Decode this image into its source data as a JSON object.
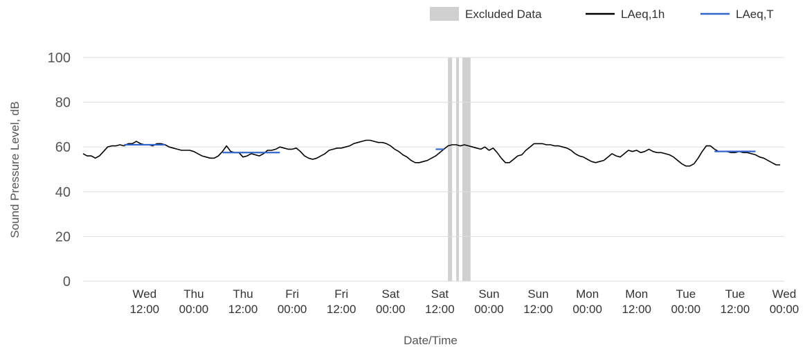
{
  "chart_data": {
    "type": "line",
    "xlabel": "Date/Time",
    "ylabel": "Sound Pressure Level, dB",
    "ylim": [
      0,
      100
    ],
    "y_ticks": [
      0,
      20,
      40,
      60,
      80,
      100
    ],
    "xlim": [
      "Tue 21:00",
      "Wed 00:00 (+8d)"
    ],
    "x_ticks": [
      {
        "day": "Wed",
        "time": "12:00"
      },
      {
        "day": "Thu",
        "time": "00:00"
      },
      {
        "day": "Thu",
        "time": "12:00"
      },
      {
        "day": "Fri",
        "time": "00:00"
      },
      {
        "day": "Fri",
        "time": "12:00"
      },
      {
        "day": "Sat",
        "time": "00:00"
      },
      {
        "day": "Sat",
        "time": "12:00"
      },
      {
        "day": "Sun",
        "time": "00:00"
      },
      {
        "day": "Sun",
        "time": "12:00"
      },
      {
        "day": "Mon",
        "time": "00:00"
      },
      {
        "day": "Mon",
        "time": "12:00"
      },
      {
        "day": "Tue",
        "time": "00:00"
      },
      {
        "day": "Tue",
        "time": "12:00"
      },
      {
        "day": "Wed",
        "time": "00:00"
      }
    ],
    "grid": true,
    "legend_position": "top-right",
    "legend": [
      {
        "label": "Excluded Data",
        "kind": "box",
        "color": "#d0d0d0"
      },
      {
        "label": "LAeq,1h",
        "kind": "line",
        "color": "#000000"
      },
      {
        "label": "LAeq,T",
        "kind": "line",
        "color": "#3366cc"
      }
    ],
    "excluded_ranges": [
      [
        "Sat 14:00",
        "Sat 15:00"
      ],
      [
        "Sat 16:00",
        "Sat 16:40"
      ],
      [
        "Sat 17:30",
        "Sat 19:30"
      ]
    ],
    "series": [
      {
        "name": "LAeq,1h",
        "color": "#000000",
        "points": [
          [
            "Tue 21:00",
            57
          ],
          [
            "Tue 22:00",
            56
          ],
          [
            "Tue 23:00",
            56
          ],
          [
            "Wed 00:00",
            55
          ],
          [
            "Wed 01:00",
            56
          ],
          [
            "Wed 02:00",
            58
          ],
          [
            "Wed 03:00",
            60
          ],
          [
            "Wed 04:00",
            60.5
          ],
          [
            "Wed 05:00",
            60.5
          ],
          [
            "Wed 06:00",
            61
          ],
          [
            "Wed 07:00",
            60.5
          ],
          [
            "Wed 08:00",
            61.5
          ],
          [
            "Wed 09:00",
            61.5
          ],
          [
            "Wed 10:00",
            62.5
          ],
          [
            "Wed 11:00",
            61.5
          ],
          [
            "Wed 12:00",
            61
          ],
          [
            "Wed 13:00",
            61
          ],
          [
            "Wed 14:00",
            60.5
          ],
          [
            "Wed 15:00",
            61.5
          ],
          [
            "Wed 16:00",
            61.5
          ],
          [
            "Wed 17:00",
            61
          ],
          [
            "Wed 18:00",
            60
          ],
          [
            "Wed 19:00",
            59.5
          ],
          [
            "Wed 20:00",
            59
          ],
          [
            "Wed 21:00",
            58.5
          ],
          [
            "Wed 22:00",
            58.5
          ],
          [
            "Wed 23:00",
            58.5
          ],
          [
            "Thu 00:00",
            58
          ],
          [
            "Thu 01:00",
            57
          ],
          [
            "Thu 02:00",
            56
          ],
          [
            "Thu 03:00",
            55.5
          ],
          [
            "Thu 04:00",
            55
          ],
          [
            "Thu 05:00",
            55
          ],
          [
            "Thu 06:00",
            56
          ],
          [
            "Thu 07:00",
            58
          ],
          [
            "Thu 08:00",
            60.5
          ],
          [
            "Thu 09:00",
            58
          ],
          [
            "Thu 10:00",
            57.5
          ],
          [
            "Thu 11:00",
            57.5
          ],
          [
            "Thu 12:00",
            55.5
          ],
          [
            "Thu 13:00",
            56
          ],
          [
            "Thu 14:00",
            57
          ],
          [
            "Thu 15:00",
            56.5
          ],
          [
            "Thu 16:00",
            56
          ],
          [
            "Thu 17:00",
            57
          ],
          [
            "Thu 18:00",
            58.5
          ],
          [
            "Thu 19:00",
            58.5
          ],
          [
            "Thu 20:00",
            59
          ],
          [
            "Thu 21:00",
            60
          ],
          [
            "Thu 22:00",
            59.5
          ],
          [
            "Thu 23:00",
            59
          ],
          [
            "Fri 00:00",
            59
          ],
          [
            "Fri 01:00",
            59.5
          ],
          [
            "Fri 02:00",
            58
          ],
          [
            "Fri 03:00",
            56
          ],
          [
            "Fri 04:00",
            55
          ],
          [
            "Fri 05:00",
            54.5
          ],
          [
            "Fri 06:00",
            55
          ],
          [
            "Fri 07:00",
            56
          ],
          [
            "Fri 08:00",
            57
          ],
          [
            "Fri 09:00",
            58.5
          ],
          [
            "Fri 10:00",
            59
          ],
          [
            "Fri 11:00",
            59.5
          ],
          [
            "Fri 12:00",
            59.5
          ],
          [
            "Fri 13:00",
            60
          ],
          [
            "Fri 14:00",
            60.5
          ],
          [
            "Fri 15:00",
            61.5
          ],
          [
            "Fri 16:00",
            62
          ],
          [
            "Fri 17:00",
            62.5
          ],
          [
            "Fri 18:00",
            63
          ],
          [
            "Fri 19:00",
            63
          ],
          [
            "Fri 20:00",
            62.5
          ],
          [
            "Fri 21:00",
            62
          ],
          [
            "Fri 22:00",
            62
          ],
          [
            "Fri 23:00",
            61.5
          ],
          [
            "Sat 00:00",
            60.5
          ],
          [
            "Sat 01:00",
            59
          ],
          [
            "Sat 02:00",
            58
          ],
          [
            "Sat 03:00",
            56.5
          ],
          [
            "Sat 04:00",
            55.5
          ],
          [
            "Sat 05:00",
            54
          ],
          [
            "Sat 06:00",
            53
          ],
          [
            "Sat 07:00",
            53
          ],
          [
            "Sat 08:00",
            53.5
          ],
          [
            "Sat 09:00",
            54
          ],
          [
            "Sat 10:00",
            55
          ],
          [
            "Sat 11:00",
            56
          ],
          [
            "Sat 12:00",
            57.5
          ],
          [
            "Sat 13:00",
            59
          ],
          [
            "Sat 14:00",
            60.5
          ],
          [
            "Sat 15:00",
            61
          ],
          [
            "Sat 16:00",
            61
          ],
          [
            "Sat 17:00",
            60.5
          ],
          [
            "Sat 18:00",
            61
          ],
          [
            "Sat 19:00",
            60.5
          ],
          [
            "Sat 20:00",
            60
          ],
          [
            "Sat 21:00",
            59.5
          ],
          [
            "Sat 22:00",
            59
          ],
          [
            "Sat 23:00",
            60
          ],
          [
            "Sun 00:00",
            58.5
          ],
          [
            "Sun 01:00",
            59.5
          ],
          [
            "Sun 02:00",
            57.5
          ],
          [
            "Sun 03:00",
            55
          ],
          [
            "Sun 04:00",
            53
          ],
          [
            "Sun 05:00",
            53
          ],
          [
            "Sun 06:00",
            54.5
          ],
          [
            "Sun 07:00",
            56
          ],
          [
            "Sun 08:00",
            56.5
          ],
          [
            "Sun 09:00",
            58.5
          ],
          [
            "Sun 10:00",
            60
          ],
          [
            "Sun 11:00",
            61.5
          ],
          [
            "Sun 12:00",
            61.5
          ],
          [
            "Sun 13:00",
            61.5
          ],
          [
            "Sun 14:00",
            61
          ],
          [
            "Sun 15:00",
            61
          ],
          [
            "Sun 16:00",
            60.5
          ],
          [
            "Sun 17:00",
            60.5
          ],
          [
            "Sun 18:00",
            60
          ],
          [
            "Sun 19:00",
            59.5
          ],
          [
            "Sun 20:00",
            58.5
          ],
          [
            "Sun 21:00",
            57
          ],
          [
            "Sun 22:00",
            56
          ],
          [
            "Sun 23:00",
            55.5
          ],
          [
            "Mon 00:00",
            54.5
          ],
          [
            "Mon 01:00",
            53.5
          ],
          [
            "Mon 02:00",
            53
          ],
          [
            "Mon 03:00",
            53.5
          ],
          [
            "Mon 04:00",
            54
          ],
          [
            "Mon 05:00",
            55.5
          ],
          [
            "Mon 06:00",
            57
          ],
          [
            "Mon 07:00",
            56
          ],
          [
            "Mon 08:00",
            55.5
          ],
          [
            "Mon 09:00",
            57
          ],
          [
            "Mon 10:00",
            58.5
          ],
          [
            "Mon 11:00",
            58
          ],
          [
            "Mon 12:00",
            58.5
          ],
          [
            "Mon 13:00",
            57.5
          ],
          [
            "Mon 14:00",
            58
          ],
          [
            "Mon 15:00",
            59
          ],
          [
            "Mon 16:00",
            58
          ],
          [
            "Mon 17:00",
            57.5
          ],
          [
            "Mon 18:00",
            57.5
          ],
          [
            "Mon 19:00",
            57
          ],
          [
            "Mon 20:00",
            56.5
          ],
          [
            "Mon 21:00",
            55.5
          ],
          [
            "Mon 22:00",
            54
          ],
          [
            "Mon 23:00",
            52.5
          ],
          [
            "Tue 00:00",
            51.5
          ],
          [
            "Tue 01:00",
            51.5
          ],
          [
            "Tue 02:00",
            52.5
          ],
          [
            "Tue 03:00",
            55
          ],
          [
            "Tue 04:00",
            58
          ],
          [
            "Tue 05:00",
            60.5
          ],
          [
            "Tue 06:00",
            60.5
          ],
          [
            "Tue 07:00",
            59
          ],
          [
            "Tue 08:00",
            58
          ],
          [
            "Tue 09:00",
            58
          ],
          [
            "Tue 10:00",
            58
          ],
          [
            "Tue 11:00",
            57.5
          ],
          [
            "Tue 12:00",
            57.5
          ],
          [
            "Tue 13:00",
            58
          ],
          [
            "Tue 14:00",
            57.5
          ],
          [
            "Tue 15:00",
            57.5
          ],
          [
            "Tue 16:00",
            57
          ],
          [
            "Tue 17:00",
            56.5
          ],
          [
            "Tue 18:00",
            55.5
          ],
          [
            "Tue 19:00",
            55
          ],
          [
            "Tue 20:00",
            54
          ],
          [
            "Tue 21:00",
            53
          ],
          [
            "Tue 22:00",
            52
          ],
          [
            "Tue 23:00",
            52
          ]
        ]
      },
      {
        "name": "LAeq,T",
        "color": "#3366cc",
        "segments": [
          [
            [
              "Wed 07:00",
              61
            ],
            [
              "Wed 17:00",
              61
            ]
          ],
          [
            [
              "Thu 07:00",
              57.5
            ],
            [
              "Thu 21:00",
              57.5
            ]
          ],
          [
            [
              "Sat 11:00",
              59
            ],
            [
              "Sat 13:00",
              59
            ]
          ],
          [
            [
              "Tue 07:00",
              58
            ],
            [
              "Tue 17:00",
              58
            ]
          ]
        ]
      }
    ]
  }
}
